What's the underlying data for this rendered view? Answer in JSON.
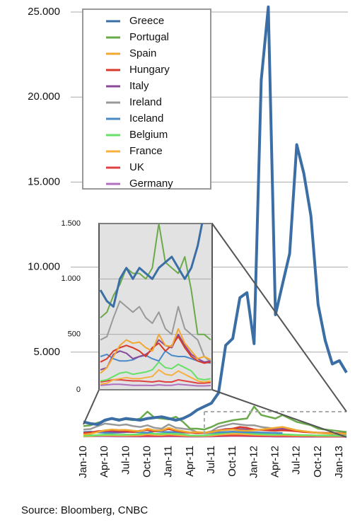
{
  "chart_data": {
    "type": "line",
    "source": "Source: Bloomberg, CNBC",
    "categories": [
      "Jan-10",
      null,
      null,
      "Apr-10",
      null,
      null,
      "Jul-10",
      null,
      null,
      "Oct-10",
      null,
      null,
      "Jan-11",
      null,
      null,
      "Apr-11",
      null,
      null,
      "Jul-11",
      null,
      null,
      "Oct-11",
      null,
      null,
      "Jan-12",
      null,
      null,
      "Apr-12",
      null,
      null,
      "Jul-12",
      null,
      null,
      "Oct-12",
      null,
      null,
      "Jan-13",
      null
    ],
    "ylim": [
      0,
      25500
    ],
    "yticks": [
      {
        "value": 5000,
        "label": "5.000"
      },
      {
        "value": 10000,
        "label": "10.000"
      },
      {
        "value": 15000,
        "label": "15.000"
      },
      {
        "value": 20000,
        "label": "20.000"
      },
      {
        "value": 25000,
        "label": "25.000"
      }
    ],
    "grid": true,
    "series": [
      {
        "name": "Greece",
        "color": "#3b6ea5",
        "values": [
          900,
          800,
          750,
          1000,
          1100,
          1000,
          1100,
          1050,
          1000,
          1100,
          1150,
          1200,
          1100,
          1000,
          1100,
          1300,
          1600,
          1800,
          2000,
          2600,
          5400,
          5800,
          8200,
          8500,
          5500,
          21000,
          25300,
          7200,
          9000,
          10800,
          17200,
          15500,
          13000,
          7800,
          5700,
          4300,
          4500,
          3800
        ]
      },
      {
        "name": "Portugal",
        "color": "#6aaa4a",
        "values": [
          650,
          700,
          850,
          950,
          1100,
          1050,
          1050,
          1000,
          1100,
          1500,
          1150,
          1100,
          1050,
          1200,
          900,
          500,
          500,
          450,
          600,
          800,
          900,
          1000,
          1050,
          1100,
          1800,
          1300,
          1200,
          1100,
          1300,
          1100,
          900,
          800,
          700,
          500,
          450,
          400,
          350,
          300
        ]
      },
      {
        "name": "Spain",
        "color": "#f0a830",
        "values": [
          150,
          200,
          300,
          400,
          450,
          420,
          430,
          380,
          350,
          500,
          400,
          390,
          550,
          420,
          350,
          280,
          300,
          270,
          300,
          380,
          420,
          450,
          400,
          380,
          400,
          450,
          500,
          550,
          600,
          500,
          400,
          350,
          300,
          250,
          230,
          220,
          210,
          200
        ]
      },
      {
        "name": "Hungary",
        "color": "#d83a2a",
        "values": [
          250,
          280,
          350,
          380,
          400,
          380,
          350,
          300,
          380,
          420,
          350,
          400,
          480,
          380,
          300,
          260,
          240,
          250,
          300,
          400,
          450,
          500,
          600,
          550,
          450,
          420,
          400,
          380,
          400,
          380,
          350,
          300,
          280,
          260,
          250,
          240,
          230,
          220
        ]
      },
      {
        "name": "Italy",
        "color": "#8a4a9a",
        "values": [
          180,
          200,
          320,
          350,
          330,
          280,
          300,
          320,
          360,
          450,
          400,
          380,
          500,
          400,
          320,
          280,
          250,
          260,
          300,
          400,
          480,
          500,
          480,
          450,
          400,
          420,
          450,
          480,
          500,
          450,
          380,
          320,
          280,
          260,
          240,
          230,
          220,
          210
        ]
      },
      {
        "name": "Ireland",
        "color": "#999999",
        "values": [
          450,
          480,
          650,
          800,
          750,
          700,
          750,
          650,
          600,
          700,
          550,
          500,
          750,
          550,
          500,
          450,
          300,
          250,
          350,
          600,
          700,
          800,
          750,
          700,
          700,
          600,
          550,
          500,
          550,
          500,
          400,
          350,
          300,
          250,
          220,
          200,
          180,
          170
        ]
      },
      {
        "name": "Iceland",
        "color": "#4a8ac8",
        "values": [
          300,
          320,
          280,
          260,
          260,
          270,
          300,
          310,
          280,
          260,
          350,
          310,
          300,
          300,
          280,
          260,
          250,
          240,
          260,
          280,
          300,
          320,
          300,
          290,
          280,
          270,
          260,
          250,
          240,
          null,
          null,
          null,
          null,
          null,
          null,
          null,
          null,
          null
        ]
      },
      {
        "name": "Belgium",
        "color": "#66e066",
        "values": [
          80,
          90,
          120,
          150,
          160,
          140,
          150,
          160,
          180,
          250,
          200,
          190,
          230,
          200,
          170,
          100,
          90,
          100,
          150,
          200,
          250,
          300,
          280,
          250,
          200,
          180,
          160,
          150,
          170,
          150,
          130,
          120,
          110,
          100,
          90,
          90,
          80,
          80
        ]
      },
      {
        "name": "France",
        "color": "#f5b040",
        "values": [
          50,
          60,
          90,
          100,
          110,
          100,
          100,
          110,
          120,
          180,
          140,
          130,
          170,
          140,
          110,
          80,
          70,
          80,
          100,
          150,
          180,
          200,
          190,
          170,
          150,
          140,
          130,
          120,
          130,
          110,
          100,
          90,
          90,
          80,
          80,
          70,
          70,
          70
        ]
      },
      {
        "name": "UK",
        "color": "#e04040",
        "values": [
          70,
          80,
          90,
          90,
          85,
          80,
          80,
          75,
          70,
          80,
          70,
          70,
          90,
          80,
          70,
          60,
          60,
          65,
          70,
          80,
          90,
          100,
          95,
          90,
          80,
          75,
          70,
          65,
          65,
          60,
          55,
          50,
          50,
          45,
          45,
          40,
          40,
          40
        ]
      },
      {
        "name": "Germany",
        "color": "#b070c0",
        "values": [
          40,
          45,
          50,
          50,
          45,
          40,
          40,
          40,
          38,
          45,
          40,
          40,
          50,
          45,
          40,
          35,
          35,
          38,
          40,
          50,
          60,
          70,
          65,
          60,
          50,
          45,
          40,
          35,
          35,
          30,
          28,
          25,
          25,
          25,
          25,
          25,
          25,
          25
        ]
      }
    ],
    "inset": {
      "xlim": [
        0,
        17
      ],
      "ylim": [
        0,
        1500
      ],
      "yticks": [
        0,
        {
          "value": 500,
          "label": "500"
        },
        {
          "value": 1000,
          "label": "1.000"
        },
        {
          "value": 1500,
          "label": "1.500"
        }
      ]
    }
  }
}
